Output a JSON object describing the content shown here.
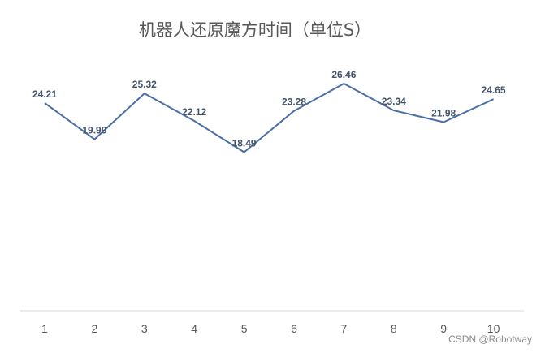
{
  "chart_data": {
    "type": "line",
    "title": "机器人还原魔方时间（单位S）",
    "x": [
      "1",
      "2",
      "3",
      "4",
      "5",
      "6",
      "7",
      "8",
      "9",
      "10"
    ],
    "series": [
      {
        "values": [
          24.21,
          19.99,
          25.32,
          22.12,
          18.49,
          23.28,
          26.46,
          23.34,
          21.98,
          24.65
        ]
      }
    ],
    "xlabel": "",
    "ylabel": "",
    "grid": false,
    "legend": "none",
    "line_color": "#4a6fa5"
  },
  "watermark": "CSDN @Robotway"
}
